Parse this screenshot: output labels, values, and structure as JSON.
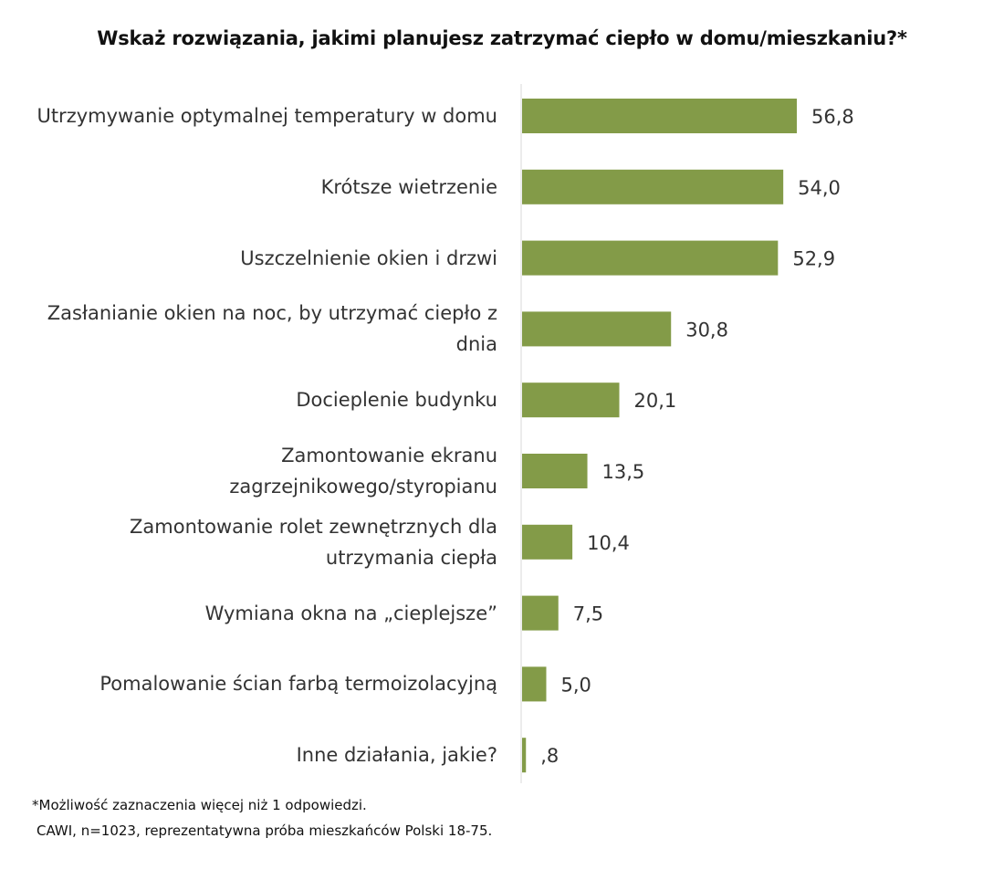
{
  "chart_data": {
    "type": "bar",
    "orientation": "horizontal",
    "title": "Wskaż rozwiązania, jakimi planujesz zatrzymać ciepło w domu/mieszkaniu?*",
    "categories": [
      "Utrzymywanie optymalnej temperatury w domu",
      "Krótsze wietrzenie",
      "Uszczelnienie okien i drzwi",
      "Zasłanianie okien na noc, by utrzymać ciepło z dnia",
      "Docieplenie budynku",
      "Zamontowanie ekranu zagrzejnikowego/styropianu",
      "Zamontowanie rolet zewnętrznych dla utrzymania ciepła",
      "Wymiana okna na „cieplejsze”",
      "Pomalowanie ścian farbą termoizolacyjną",
      "Inne działania, jakie?"
    ],
    "values": [
      56.8,
      54.0,
      52.9,
      30.8,
      20.1,
      13.5,
      10.4,
      7.5,
      5.0,
      0.8
    ],
    "data_labels": [
      "56,8",
      "54,0",
      "52,9",
      "30,8",
      "20,1",
      "13,5",
      "10,4",
      "7,5",
      "5,0",
      ",8"
    ],
    "bar_color": "#839b48",
    "axis_color": "#d9d9d9",
    "xlim": [
      0,
      100
    ],
    "grid": false,
    "legend": "none"
  },
  "footnotes": {
    "line1": "*Możliwość zaznaczenia więcej niż 1 odpowiedzi.",
    "line2": "CAWI, n=1023, reprezentatywna próba mieszkańców Polski 18-75."
  }
}
